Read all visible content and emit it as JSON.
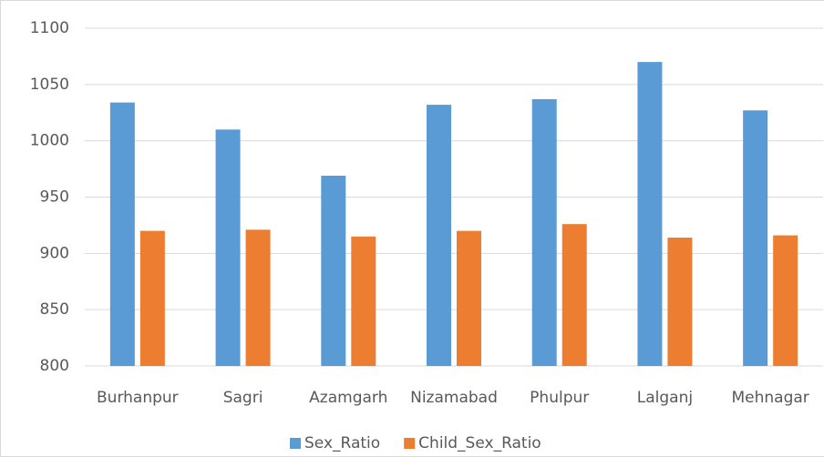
{
  "chart_data": {
    "type": "bar",
    "categories": [
      "Burhanpur",
      "Sagri",
      "Azamgarh",
      "Nizamabad",
      "Phulpur",
      "Lalganj",
      "Mehnagar"
    ],
    "series": [
      {
        "name": "Sex_Ratio",
        "color": "#5b9bd5",
        "values": [
          1034,
          1010,
          969,
          1032,
          1037,
          1070,
          1027
        ]
      },
      {
        "name": "Child_Sex_Ratio",
        "color": "#ed7d31",
        "values": [
          920,
          921,
          915,
          920,
          926,
          914,
          916
        ]
      }
    ],
    "ylim": [
      800,
      1100
    ],
    "yticks": [
      800,
      850,
      900,
      950,
      1000,
      1050,
      1100
    ],
    "grid": true,
    "legend": "bottom"
  }
}
